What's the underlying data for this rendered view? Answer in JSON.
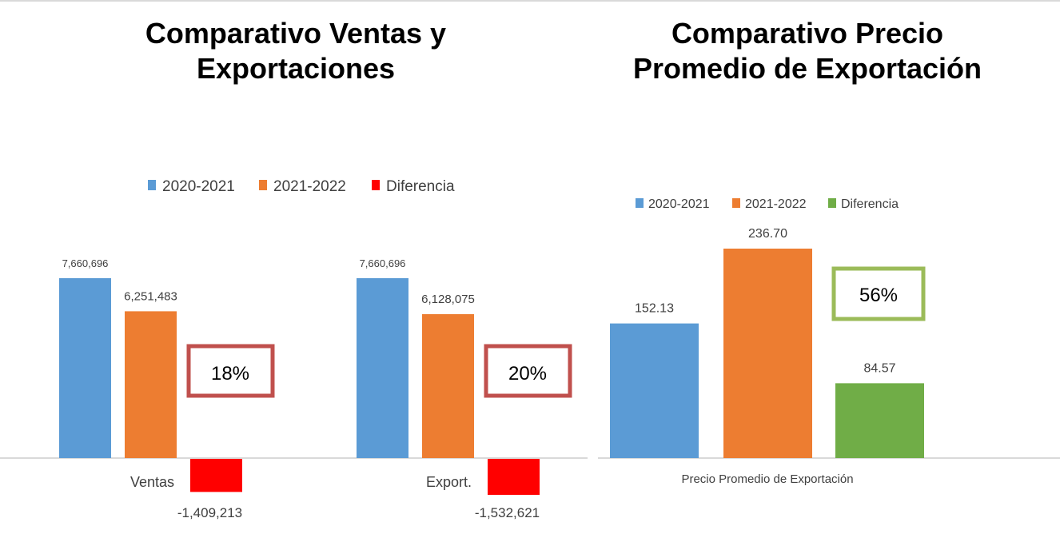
{
  "titles": {
    "left": "Comparativo Ventas y Exportaciones",
    "right": "Comparativo Precio Promedio de Exportación"
  },
  "chart_data": [
    {
      "type": "bar",
      "title": "Comparativo Ventas y Exportaciones",
      "categories": [
        "Ventas",
        "Export."
      ],
      "series": [
        {
          "name": "2020-2021",
          "color": "#5b9bd5",
          "values": [
            7660696,
            7660696
          ],
          "labels": [
            "7,660,696",
            "7,660,696"
          ]
        },
        {
          "name": "2021-2022",
          "color": "#ed7d31",
          "values": [
            6251483,
            6128075
          ],
          "labels": [
            "6,251,483",
            "6,128,075"
          ]
        },
        {
          "name": "Diferencia",
          "color": "#ff0000",
          "values": [
            -1409213,
            -1532621
          ],
          "labels": [
            "-1,409,213",
            "-1,532,621"
          ]
        }
      ],
      "annotations": [
        "18%",
        "20%"
      ],
      "annotation_color": "#c0504d",
      "legend": "top",
      "grid": false
    },
    {
      "type": "bar",
      "title": "Comparativo Precio Promedio de Exportación",
      "categories": [
        "Precio Promedio de Exportación"
      ],
      "series": [
        {
          "name": "2020-2021",
          "color": "#5b9bd5",
          "values": [
            152.13
          ],
          "labels": [
            "152.13"
          ]
        },
        {
          "name": "2021-2022",
          "color": "#ed7d31",
          "values": [
            236.7
          ],
          "labels": [
            "236.70"
          ]
        },
        {
          "name": "Diferencia",
          "color": "#70ad47",
          "values": [
            84.57
          ],
          "labels": [
            "84.57"
          ]
        }
      ],
      "annotations": [
        "56%"
      ],
      "annotation_color": "#9bbb59",
      "legend": "top",
      "grid": false
    }
  ]
}
